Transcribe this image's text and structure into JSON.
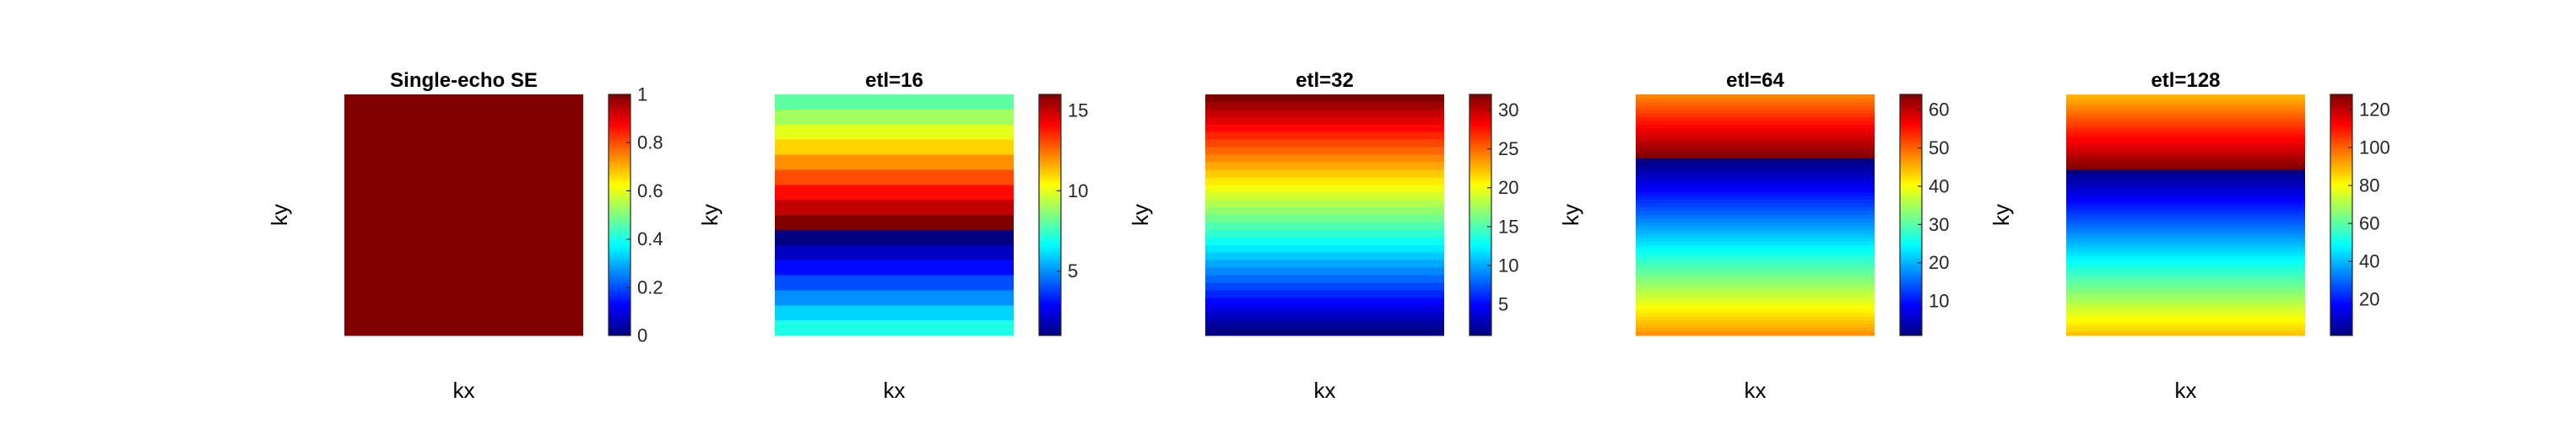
{
  "chart_data": [
    {
      "type": "heatmap",
      "title": "Single-echo SE",
      "xlabel": "kx",
      "ylabel": "ky",
      "colormap": "jet",
      "clim": [
        0,
        1
      ],
      "n_rows": 1,
      "row_values": [
        1
      ],
      "colorbar_ticks": [
        0,
        0.2,
        0.4,
        0.6,
        0.8,
        1
      ],
      "colorbar_ticklabels": [
        "0",
        "0.2",
        "0.4",
        "0.6",
        "0.8",
        "1"
      ]
    },
    {
      "type": "heatmap",
      "title": "etl=16",
      "xlabel": "kx",
      "ylabel": "ky",
      "colormap": "jet",
      "clim": [
        1,
        16
      ],
      "n_rows": 16,
      "row_values": [
        8,
        9,
        10,
        11,
        12,
        13,
        14,
        15,
        16,
        1,
        2,
        3,
        4,
        5,
        6,
        7
      ],
      "colorbar_ticks": [
        5,
        10,
        15
      ],
      "colorbar_ticklabels": [
        "5",
        "10",
        "15"
      ]
    },
    {
      "type": "heatmap",
      "title": "etl=32",
      "xlabel": "kx",
      "ylabel": "ky",
      "colormap": "jet",
      "clim": [
        1,
        32
      ],
      "n_rows": 32,
      "row_values": [
        32,
        31,
        30,
        29,
        28,
        27,
        26,
        25,
        24,
        23,
        22,
        21,
        20,
        19,
        18,
        17,
        16,
        15,
        14,
        13,
        12,
        11,
        10,
        9,
        8,
        7,
        6,
        5,
        4,
        3,
        2,
        1
      ],
      "colorbar_ticks": [
        5,
        10,
        15,
        20,
        25,
        30
      ],
      "colorbar_ticklabels": [
        "5",
        "10",
        "15",
        "20",
        "25",
        "30"
      ]
    },
    {
      "type": "heatmap",
      "title": "etl=64",
      "xlabel": "kx",
      "ylabel": "ky",
      "colormap": "jet",
      "clim": [
        1,
        64
      ],
      "n_rows": 64,
      "row_values": [
        48,
        49,
        50,
        51,
        52,
        53,
        54,
        55,
        56,
        57,
        58,
        59,
        60,
        61,
        62,
        63,
        64,
        1,
        2,
        3,
        4,
        5,
        6,
        7,
        8,
        9,
        10,
        11,
        12,
        13,
        14,
        15,
        16,
        17,
        18,
        19,
        20,
        21,
        22,
        23,
        24,
        25,
        26,
        27,
        28,
        29,
        30,
        31,
        32,
        33,
        34,
        35,
        36,
        37,
        38,
        39,
        40,
        41,
        42,
        43,
        44,
        45,
        46,
        47
      ],
      "colorbar_ticks": [
        10,
        20,
        30,
        40,
        50,
        60
      ],
      "colorbar_ticklabels": [
        "10",
        "20",
        "30",
        "40",
        "50",
        "60"
      ]
    },
    {
      "type": "heatmap",
      "title": "etl=128",
      "xlabel": "kx",
      "ylabel": "ky",
      "colormap": "jet",
      "clim": [
        1,
        128
      ],
      "n_rows": 128,
      "row_values": [
        89,
        90,
        91,
        92,
        93,
        94,
        95,
        96,
        97,
        98,
        99,
        100,
        101,
        102,
        103,
        104,
        105,
        106,
        107,
        108,
        109,
        110,
        111,
        112,
        113,
        114,
        115,
        116,
        117,
        118,
        119,
        120,
        121,
        122,
        123,
        124,
        125,
        126,
        127,
        128,
        1,
        2,
        3,
        4,
        5,
        6,
        7,
        8,
        9,
        10,
        11,
        12,
        13,
        14,
        15,
        16,
        17,
        18,
        19,
        20,
        21,
        22,
        23,
        24,
        25,
        26,
        27,
        28,
        29,
        30,
        31,
        32,
        33,
        34,
        35,
        36,
        37,
        38,
        39,
        40,
        41,
        42,
        43,
        44,
        45,
        46,
        47,
        48,
        49,
        50,
        51,
        52,
        53,
        54,
        55,
        56,
        57,
        58,
        59,
        60,
        61,
        62,
        63,
        64,
        65,
        66,
        67,
        68,
        69,
        70,
        71,
        72,
        73,
        74,
        75,
        76,
        77,
        78,
        79,
        80,
        81,
        82,
        83,
        84,
        85,
        86,
        87,
        88
      ],
      "colorbar_ticks": [
        20,
        40,
        60,
        80,
        100,
        120
      ],
      "colorbar_ticklabels": [
        "20",
        "40",
        "60",
        "80",
        "100",
        "120"
      ]
    }
  ]
}
